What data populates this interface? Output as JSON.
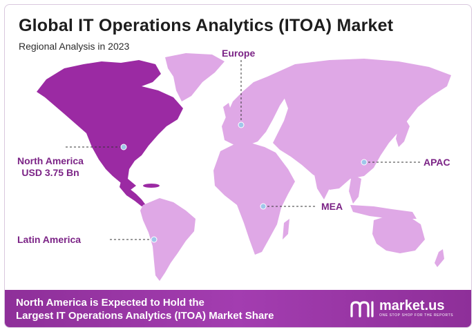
{
  "title": "Global IT Operations Analytics (ITOA) Market",
  "subtitle": "Regional Analysis in 2023",
  "regions": {
    "europe": "Europe",
    "north_america": "North America",
    "north_america_value": "USD 3.75 Bn",
    "apac": "APAC",
    "mea": "MEA",
    "latin_america": "Latin America"
  },
  "footer": {
    "line1": "North America is Expected to Hold the",
    "line2": "Largest IT Operations Analytics (ITOA) Market Share"
  },
  "brand": {
    "name": "market.us",
    "tagline": "ONE STOP SHOP FOR THE REPORTS"
  },
  "colors": {
    "highlight_region": "#9b2aa3",
    "other_regions": "#dfa8e6",
    "label": "#7b2386",
    "footer": "#9a37a6"
  }
}
